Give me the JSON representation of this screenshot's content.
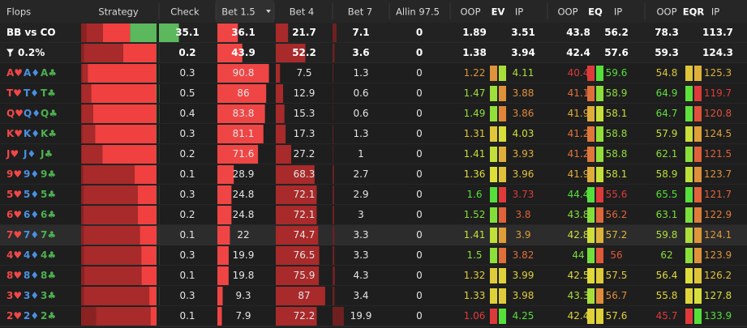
{
  "header": [
    "Flops",
    "Strategy",
    "Check",
    "Bet 1.5",
    "Bet 4",
    "Bet 7",
    "Allin 97.5",
    "OOP",
    "EV",
    "IP",
    "OOP",
    "EQ",
    "IP",
    "OOP",
    "EQR",
    "IP"
  ],
  "rows": [
    {
      "label": "BB vs CO",
      "values": [
        35.1,
        36.1,
        21.7,
        7.1,
        0,
        1.89,
        3.51,
        43.8,
        56.2,
        78.3,
        113.7
      ]
    },
    {
      "label": "0.2%",
      "values": [
        0.2,
        43.9,
        52.2,
        3.6,
        0,
        1.38,
        3.94,
        42.4,
        57.6,
        59.3,
        124.3
      ]
    },
    {
      "cards": [
        "A♥",
        "A♦",
        "A♣"
      ],
      "values": [
        0.3,
        90.8,
        7.5,
        1.3,
        0,
        1.22,
        4.11,
        40.4,
        59.6,
        54.8,
        125.3
      ]
    },
    {
      "cards": [
        "T♥",
        "T♦",
        "T♣"
      ],
      "values": [
        0.5,
        86,
        12.9,
        0.6,
        0,
        1.47,
        3.88,
        41.1,
        58.9,
        64.9,
        119.7
      ]
    },
    {
      "cards": [
        "Q♥",
        "Q♦",
        "Q♣"
      ],
      "values": [
        0.4,
        83.8,
        15.3,
        0.6,
        0,
        1.49,
        3.86,
        41.9,
        58.1,
        64.7,
        120.8
      ]
    },
    {
      "cards": [
        "K♥",
        "K♦",
        "K♣"
      ],
      "values": [
        0.3,
        81.1,
        17.3,
        1.3,
        0,
        1.31,
        4.03,
        41.2,
        58.8,
        57.9,
        124.5
      ]
    },
    {
      "cards": [
        "J♥",
        "J♦",
        "J♣"
      ],
      "values": [
        0.2,
        71.6,
        27.2,
        1,
        0,
        1.41,
        3.93,
        41.2,
        58.8,
        62.1,
        121.5
      ]
    },
    {
      "cards": [
        "9♥",
        "9♦",
        "9♣"
      ],
      "values": [
        0.1,
        28.9,
        68.3,
        2.7,
        0,
        1.36,
        3.96,
        41.9,
        58.1,
        58.9,
        123.7
      ]
    },
    {
      "cards": [
        "5♥",
        "5♦",
        "5♣"
      ],
      "values": [
        0.3,
        24.8,
        72.1,
        2.9,
        0,
        1.6,
        3.73,
        44.4,
        55.6,
        65.5,
        121.7
      ]
    },
    {
      "cards": [
        "6♥",
        "6♦",
        "6♣"
      ],
      "values": [
        0.2,
        24.8,
        72.1,
        3,
        0,
        1.52,
        3.8,
        43.8,
        56.2,
        63.1,
        122.9
      ]
    },
    {
      "cards": [
        "7♥",
        "7♦",
        "7♣"
      ],
      "values": [
        0.1,
        22,
        74.7,
        3.3,
        0,
        1.41,
        3.9,
        42.8,
        57.2,
        59.8,
        124.1
      ]
    },
    {
      "cards": [
        "4♥",
        "4♦",
        "4♣"
      ],
      "values": [
        0.3,
        19.9,
        76.5,
        3.3,
        0,
        1.5,
        3.82,
        44,
        56,
        62,
        123.9
      ]
    },
    {
      "cards": [
        "8♥",
        "8♦",
        "8♣"
      ],
      "values": [
        0.1,
        19.8,
        75.9,
        4.3,
        0,
        1.32,
        3.99,
        42.5,
        57.5,
        56.4,
        126.2
      ]
    },
    {
      "cards": [
        "3♥",
        "3♦",
        "3♣"
      ],
      "values": [
        0.3,
        9.3,
        87,
        3.4,
        0,
        1.33,
        3.98,
        43.3,
        56.7,
        55.8,
        127.8
      ]
    },
    {
      "cards": [
        "2♥",
        "2♦",
        "2♣"
      ],
      "values": [
        0.1,
        7.9,
        72.2,
        19.9,
        0,
        1.06,
        4.25,
        42.4,
        57.6,
        45.7,
        133.9
      ]
    }
  ]
}
